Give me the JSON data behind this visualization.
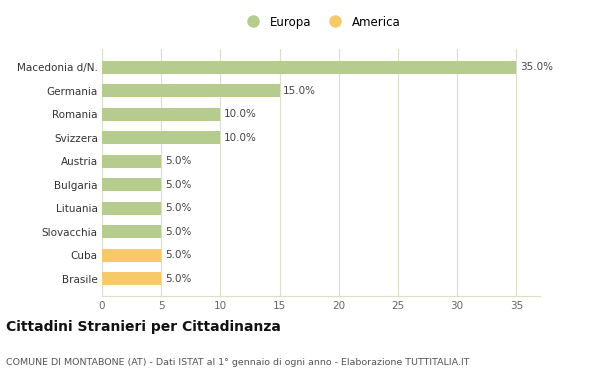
{
  "categories": [
    "Brasile",
    "Cuba",
    "Slovacchia",
    "Lituania",
    "Bulgaria",
    "Austria",
    "Svizzera",
    "Romania",
    "Germania",
    "Macedonia d/N."
  ],
  "values": [
    5.0,
    5.0,
    5.0,
    5.0,
    5.0,
    5.0,
    10.0,
    10.0,
    15.0,
    35.0
  ],
  "colors": [
    "#f8c96a",
    "#f8c96a",
    "#b5cc8e",
    "#b5cc8e",
    "#b5cc8e",
    "#b5cc8e",
    "#b5cc8e",
    "#b5cc8e",
    "#b5cc8e",
    "#b5cc8e"
  ],
  "europa_color": "#b5cc8e",
  "america_color": "#f8c96a",
  "xlim": [
    0,
    37
  ],
  "xticks": [
    0,
    5,
    10,
    15,
    20,
    25,
    30,
    35
  ],
  "title": "Cittadini Stranieri per Cittadinanza",
  "subtitle": "COMUNE DI MONTABONE (AT) - Dati ISTAT al 1° gennaio di ogni anno - Elaborazione TUTTITALIA.IT",
  "legend_europa": "Europa",
  "legend_america": "America",
  "bar_height": 0.55,
  "background_color": "#ffffff",
  "grid_color": "#d8e0c8"
}
